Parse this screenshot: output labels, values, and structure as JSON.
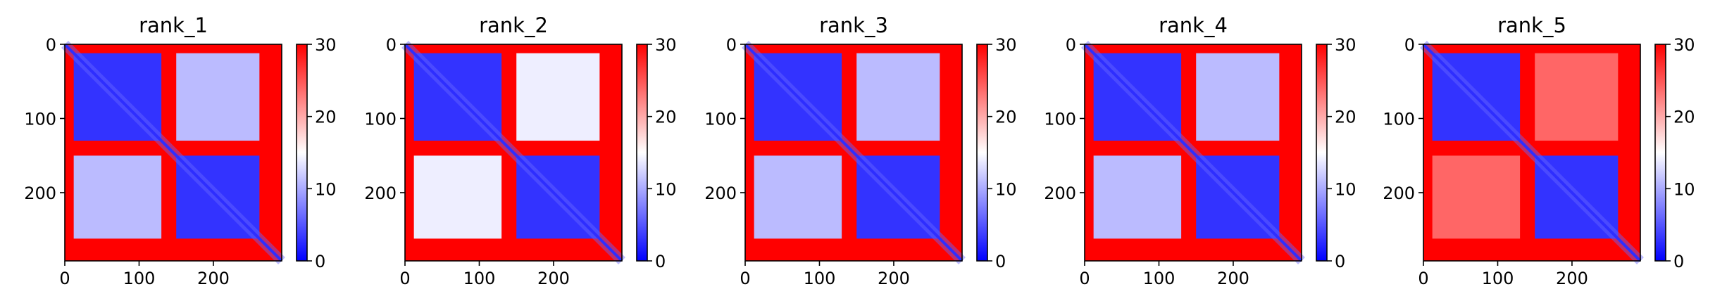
{
  "chart_data": [
    {
      "type": "heatmap",
      "title": "rank_1",
      "size": 292,
      "xlim": [
        0,
        292
      ],
      "ylim": [
        292,
        0
      ],
      "xticks": [
        0,
        100,
        200
      ],
      "yticks": [
        0,
        100,
        200
      ],
      "colorbar": {
        "min": 0,
        "max": 30,
        "ticks": [
          0,
          10,
          20,
          30
        ],
        "colors": [
          "#0000ff",
          "#ffffff",
          "#ff0000"
        ]
      },
      "domains": [
        [
          12,
          130
        ],
        [
          150,
          262
        ]
      ],
      "gap_band": [
        130,
        150
      ],
      "values": {
        "diagonal": 0,
        "intra_domain": 3,
        "inter_domain": 11,
        "background": 30,
        "gap_band": 30
      }
    },
    {
      "type": "heatmap",
      "title": "rank_2",
      "size": 292,
      "xlim": [
        0,
        292
      ],
      "ylim": [
        292,
        0
      ],
      "xticks": [
        0,
        100,
        200
      ],
      "yticks": [
        0,
        100,
        200
      ],
      "colorbar": {
        "min": 0,
        "max": 30,
        "ticks": [
          0,
          10,
          20,
          30
        ],
        "colors": [
          "#0000ff",
          "#ffffff",
          "#ff0000"
        ]
      },
      "domains": [
        [
          12,
          130
        ],
        [
          150,
          262
        ]
      ],
      "gap_band": [
        130,
        150
      ],
      "values": {
        "diagonal": 0,
        "intra_domain": 3,
        "inter_domain": 14,
        "background": 30,
        "gap_band": 30
      }
    },
    {
      "type": "heatmap",
      "title": "rank_3",
      "size": 292,
      "xlim": [
        0,
        292
      ],
      "ylim": [
        292,
        0
      ],
      "xticks": [
        0,
        100,
        200
      ],
      "yticks": [
        0,
        100,
        200
      ],
      "colorbar": {
        "min": 0,
        "max": 30,
        "ticks": [
          0,
          10,
          20,
          30
        ],
        "colors": [
          "#0000ff",
          "#ffffff",
          "#ff0000"
        ]
      },
      "domains": [
        [
          12,
          130
        ],
        [
          150,
          262
        ]
      ],
      "gap_band": [
        130,
        150
      ],
      "values": {
        "diagonal": 0,
        "intra_domain": 3,
        "inter_domain": 11,
        "background": 30,
        "gap_band": 30
      }
    },
    {
      "type": "heatmap",
      "title": "rank_4",
      "size": 292,
      "xlim": [
        0,
        292
      ],
      "ylim": [
        292,
        0
      ],
      "xticks": [
        0,
        100,
        200
      ],
      "yticks": [
        0,
        100,
        200
      ],
      "colorbar": {
        "min": 0,
        "max": 30,
        "ticks": [
          0,
          10,
          20,
          30
        ],
        "colors": [
          "#0000ff",
          "#ffffff",
          "#ff0000"
        ]
      },
      "domains": [
        [
          12,
          130
        ],
        [
          150,
          262
        ]
      ],
      "gap_band": [
        130,
        150
      ],
      "values": {
        "diagonal": 0,
        "intra_domain": 3,
        "inter_domain": 11,
        "background": 30,
        "gap_band": 30
      }
    },
    {
      "type": "heatmap",
      "title": "rank_5",
      "size": 292,
      "xlim": [
        0,
        292
      ],
      "ylim": [
        292,
        0
      ],
      "xticks": [
        0,
        100,
        200
      ],
      "yticks": [
        0,
        100,
        200
      ],
      "colorbar": {
        "min": 0,
        "max": 30,
        "ticks": [
          0,
          10,
          20,
          30
        ],
        "colors": [
          "#0000ff",
          "#ffffff",
          "#ff0000"
        ]
      },
      "domains": [
        [
          12,
          130
        ],
        [
          150,
          262
        ]
      ],
      "gap_band": [
        130,
        150
      ],
      "values": {
        "diagonal": 0,
        "intra_domain": 3,
        "inter_domain": 24,
        "background": 30,
        "gap_band": 30
      }
    }
  ]
}
